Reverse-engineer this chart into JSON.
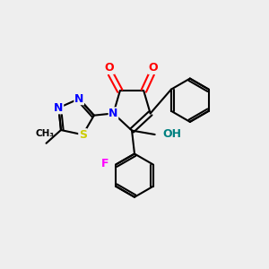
{
  "bg_color": "#eeeeee",
  "atom_colors": {
    "N": "#0000ff",
    "O": "#ff0000",
    "S": "#cccc00",
    "F": "#ff00ff",
    "HO": "#008080",
    "C": "#000000"
  },
  "bond_color": "#000000",
  "lw": 1.5
}
